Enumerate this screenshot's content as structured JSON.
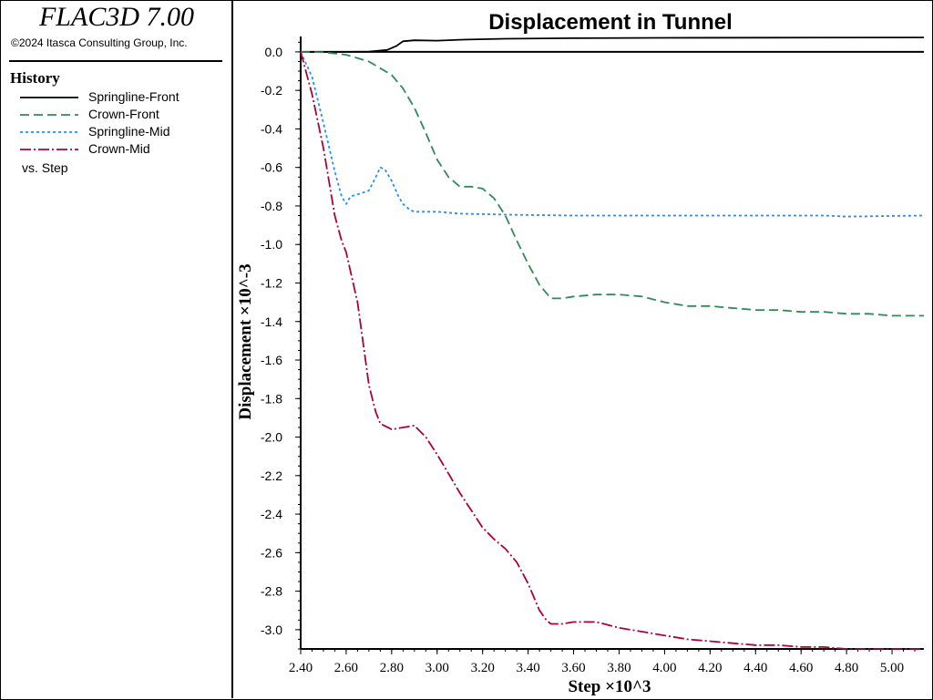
{
  "app": {
    "title": "FLAC3D 7.00",
    "copyright": "©2024 Itasca Consulting Group, Inc."
  },
  "history_panel": {
    "title": "History",
    "vs_label": "vs. Step"
  },
  "chart_data": {
    "type": "line",
    "title": "Displacement in Tunnel",
    "xlabel": "Step ×10^3",
    "ylabel": "Displacement ×10^-3",
    "xlim": [
      2.4,
      5.14
    ],
    "ylim": [
      -3.1,
      0.08
    ],
    "xticks": [
      "2.40",
      "2.60",
      "2.80",
      "3.00",
      "3.20",
      "3.40",
      "3.60",
      "3.80",
      "4.00",
      "4.20",
      "4.40",
      "4.60",
      "4.80",
      "5.00"
    ],
    "yticks": [
      "0.0",
      "-0.2",
      "-0.4",
      "-0.6",
      "-0.8",
      "-1.0",
      "-1.2",
      "-1.4",
      "-1.6",
      "-1.8",
      "-2.0",
      "-2.2",
      "-2.4",
      "-2.6",
      "-2.8",
      "-3.0"
    ],
    "zero_line": 0,
    "grid": false,
    "legend_location": "left panel",
    "series": [
      {
        "name": "Springline-Front",
        "color": "#000000",
        "dash": "solid",
        "x": [
          2.4,
          2.6,
          2.7,
          2.78,
          2.82,
          2.85,
          2.9,
          3.0,
          3.1,
          3.3,
          3.6,
          4.0,
          4.5,
          5.14
        ],
        "y": [
          0.0,
          0.0,
          0.001,
          0.01,
          0.03,
          0.055,
          0.06,
          0.058,
          0.063,
          0.068,
          0.071,
          0.073,
          0.074,
          0.075
        ]
      },
      {
        "name": "Crown-Front",
        "color": "#2e8b57",
        "dash": "10,5",
        "x": [
          2.4,
          2.5,
          2.6,
          2.7,
          2.8,
          2.85,
          2.9,
          2.95,
          3.0,
          3.05,
          3.1,
          3.15,
          3.2,
          3.25,
          3.3,
          3.35,
          3.4,
          3.45,
          3.5,
          3.55,
          3.6,
          3.7,
          3.8,
          3.9,
          4.0,
          4.1,
          4.2,
          4.3,
          4.4,
          4.5,
          4.6,
          4.7,
          4.8,
          4.9,
          5.0,
          5.14
        ],
        "y": [
          0.0,
          -0.002,
          -0.015,
          -0.05,
          -0.12,
          -0.19,
          -0.29,
          -0.42,
          -0.56,
          -0.65,
          -0.7,
          -0.7,
          -0.71,
          -0.76,
          -0.85,
          -0.98,
          -1.1,
          -1.21,
          -1.28,
          -1.28,
          -1.27,
          -1.26,
          -1.26,
          -1.27,
          -1.3,
          -1.32,
          -1.32,
          -1.33,
          -1.34,
          -1.34,
          -1.35,
          -1.35,
          -1.36,
          -1.36,
          -1.37,
          -1.37
        ]
      },
      {
        "name": "Springline-Mid",
        "color": "#1e90ff",
        "dash": "3,3",
        "x": [
          2.4,
          2.45,
          2.5,
          2.55,
          2.58,
          2.6,
          2.62,
          2.65,
          2.7,
          2.73,
          2.75,
          2.77,
          2.8,
          2.83,
          2.85,
          2.88,
          2.9,
          3.0,
          3.1,
          3.3,
          3.6,
          4.0,
          4.5,
          4.7,
          4.8,
          5.14
        ],
        "y": [
          0.0,
          -0.13,
          -0.37,
          -0.62,
          -0.75,
          -0.79,
          -0.75,
          -0.74,
          -0.72,
          -0.65,
          -0.6,
          -0.61,
          -0.67,
          -0.75,
          -0.79,
          -0.82,
          -0.83,
          -0.83,
          -0.84,
          -0.845,
          -0.85,
          -0.85,
          -0.85,
          -0.85,
          -0.855,
          -0.85
        ]
      },
      {
        "name": "Crown-Mid",
        "color": "#b0003a",
        "dash": "12,3,2,3",
        "x": [
          2.4,
          2.45,
          2.5,
          2.55,
          2.58,
          2.6,
          2.65,
          2.7,
          2.73,
          2.75,
          2.8,
          2.85,
          2.9,
          2.95,
          3.0,
          3.05,
          3.1,
          3.15,
          3.2,
          3.25,
          3.3,
          3.35,
          3.4,
          3.45,
          3.48,
          3.5,
          3.55,
          3.6,
          3.7,
          3.8,
          3.9,
          4.0,
          4.1,
          4.2,
          4.3,
          4.4,
          4.5,
          4.6,
          4.7,
          4.8,
          4.9,
          5.0,
          5.14
        ],
        "y": [
          0.0,
          -0.22,
          -0.5,
          -0.85,
          -0.98,
          -1.04,
          -1.3,
          -1.73,
          -1.87,
          -1.93,
          -1.96,
          -1.95,
          -1.94,
          -2.0,
          -2.09,
          -2.19,
          -2.29,
          -2.38,
          -2.47,
          -2.53,
          -2.58,
          -2.65,
          -2.76,
          -2.9,
          -2.95,
          -2.97,
          -2.97,
          -2.96,
          -2.96,
          -2.99,
          -3.01,
          -3.03,
          -3.05,
          -3.06,
          -3.07,
          -3.08,
          -3.08,
          -3.09,
          -3.09,
          -3.1,
          -3.1,
          -3.1,
          -3.1
        ]
      }
    ]
  }
}
